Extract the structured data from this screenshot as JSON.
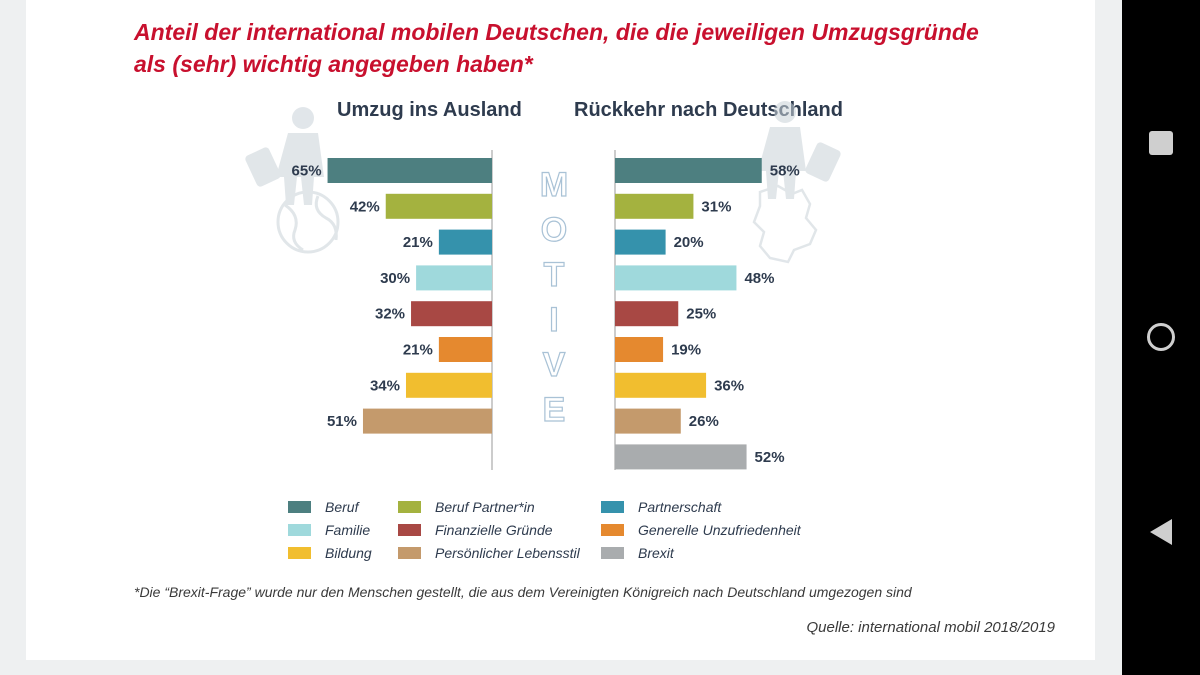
{
  "title": "Anteil der international mobilen Deutschen, die die jeweiligen Umzugsgründe als (sehr) wichtig angegeben haben*",
  "colors": {
    "title": "#c8102e",
    "text": "#2e3b4e",
    "Beruf": "#4d7f80",
    "Beruf Partner*in": "#a4b23f",
    "Partnerschaft": "#3592ac",
    "Familie": "#9fd9dc",
    "Finanzielle Gründe": "#a84844",
    "Generelle Unzufriedenheit": "#e5892f",
    "Bildung": "#f1be2f",
    "Persönlicher Lebensstil": "#c49a6c",
    "Brexit": "#a9acae"
  },
  "chart_data": [
    {
      "type": "bar",
      "orientation": "horizontal",
      "direction": "right-to-left",
      "title": "Umzug ins Ausland",
      "unit": "%",
      "xlim": [
        0,
        100
      ],
      "categories": [
        "Beruf",
        "Beruf Partner*in",
        "Partnerschaft",
        "Familie",
        "Finanzielle Gründe",
        "Generelle Unzufriedenheit",
        "Bildung",
        "Persönlicher Lebensstil"
      ],
      "values": [
        65,
        42,
        21,
        30,
        32,
        21,
        34,
        51
      ],
      "labels": [
        "65%",
        "42%",
        "21%",
        "30%",
        "32%",
        "21%",
        "34%",
        "51%"
      ]
    },
    {
      "type": "bar",
      "orientation": "horizontal",
      "direction": "left-to-right",
      "title": "Rückkehr nach Deutschland",
      "unit": "%",
      "xlim": [
        0,
        100
      ],
      "categories": [
        "Beruf",
        "Beruf Partner*in",
        "Partnerschaft",
        "Familie",
        "Finanzielle Gründe",
        "Generelle Unzufriedenheit",
        "Bildung",
        "Persönlicher Lebensstil",
        "Brexit"
      ],
      "values": [
        58,
        31,
        20,
        48,
        25,
        19,
        36,
        26,
        52
      ],
      "labels": [
        "58%",
        "31%",
        "20%",
        "48%",
        "25%",
        "19%",
        "36%",
        "26%",
        "52%"
      ]
    }
  ],
  "center_label": [
    "M",
    "O",
    "T",
    "I",
    "V",
    "E"
  ],
  "legend": [
    {
      "label": "Beruf",
      "color": "#4d7f80"
    },
    {
      "label": "Beruf Partner*in",
      "color": "#a4b23f"
    },
    {
      "label": "Partnerschaft",
      "color": "#3592ac"
    },
    {
      "label": "Familie",
      "color": "#9fd9dc"
    },
    {
      "label": "Finanzielle Gründe",
      "color": "#a84844"
    },
    {
      "label": "Generelle Unzufriedenheit",
      "color": "#e5892f"
    },
    {
      "label": "Bildung",
      "color": "#f1be2f"
    },
    {
      "label": "Persönlicher Lebensstil",
      "color": "#c49a6c"
    },
    {
      "label": "Brexit",
      "color": "#a9acae"
    }
  ],
  "footnote": "*Die “Brexit-Frage” wurde nur den Menschen gestellt, die aus dem Vereinigten Königreich nach Deutschland umgezogen sind",
  "source": "Quelle: international mobil 2018/2019",
  "nav": {
    "icons": [
      "overview-icon",
      "home-icon",
      "back-icon"
    ]
  }
}
